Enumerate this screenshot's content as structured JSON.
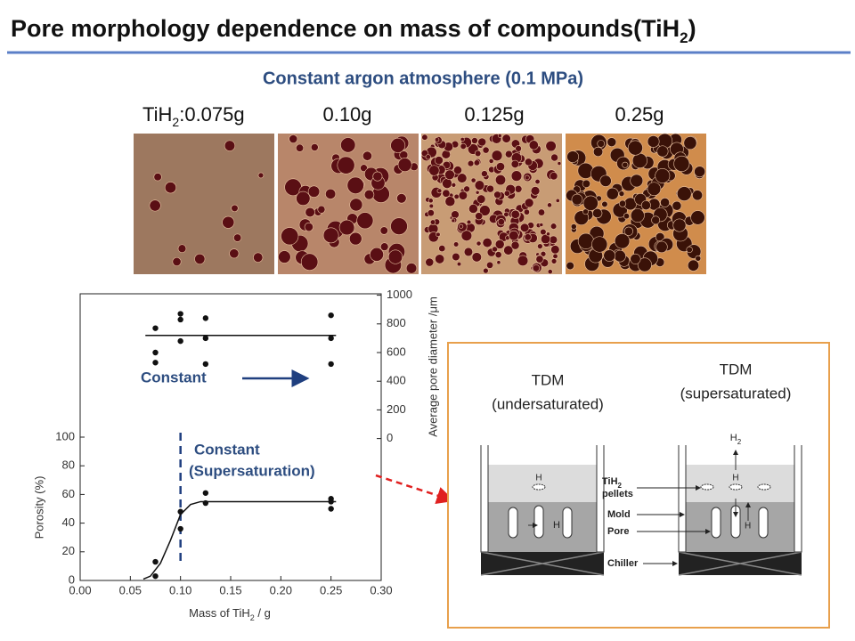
{
  "title": {
    "main": "Pore morphology dependence on mass of compounds(TiH",
    "sub": "2",
    "end": ")"
  },
  "subtitle": "Constant argon atmosphere (0.1 MPa)",
  "sample_prefix": {
    "text": "TiH",
    "sub": "2",
    "sep": ":"
  },
  "sample_labels": [
    "0.075g",
    "0.10g",
    "0.125g",
    "0.25g"
  ],
  "chart_data": {
    "type": "scatter",
    "xlabel": {
      "text": "Mass of TiH",
      "sub": "2",
      "end": " / g"
    },
    "ylabel": "Porosity (%)",
    "y2label": "Average pore diameter /μm",
    "xlim": [
      0,
      0.3
    ],
    "xticks": [
      {
        "value": 0,
        "label": "0.00"
      },
      {
        "value": 0.05,
        "label": "0.05"
      },
      {
        "value": 0.1,
        "label": "0.10"
      },
      {
        "value": 0.15,
        "label": "0.15"
      },
      {
        "value": 0.2,
        "label": "0.20"
      },
      {
        "value": 0.25,
        "label": "0.25"
      },
      {
        "value": 0.3,
        "label": "0.30"
      }
    ],
    "ylim": [
      0,
      200
    ],
    "yticks": [
      0,
      20,
      40,
      60,
      80,
      100
    ],
    "y2lim": [
      -990,
      1010
    ],
    "y2ticks": [
      0,
      200,
      400,
      600,
      800,
      1000
    ],
    "vline": {
      "x": 0.1,
      "color": "#1f3f7f"
    },
    "series": [
      {
        "kind": "points",
        "color": "#111",
        "x": [
          0.075,
          0.075,
          0.1,
          0.1,
          0.125,
          0.125,
          0.25,
          0.25,
          0.25
        ],
        "values": [
          3,
          13,
          36,
          48,
          54,
          61,
          50,
          55,
          57
        ]
      },
      {
        "kind": "points",
        "axis": "y2",
        "color": "#111",
        "x": [
          0.075,
          0.075,
          0.075,
          0.1,
          0.1,
          0.1,
          0.125,
          0.125,
          0.125,
          0.25,
          0.25,
          0.25
        ],
        "values": [
          770,
          600,
          530,
          870,
          830,
          680,
          840,
          700,
          520,
          860,
          700,
          520
        ]
      },
      {
        "kind": "line",
        "color": "#111",
        "x": [
          0.063,
          0.07,
          0.08,
          0.09,
          0.1,
          0.11,
          0.12,
          0.15,
          0.2,
          0.255
        ],
        "values": [
          1,
          3,
          12,
          28,
          46,
          53,
          55,
          55,
          55,
          55
        ]
      },
      {
        "kind": "line",
        "axis": "y2",
        "color": "#111",
        "x": [
          0.065,
          0.255
        ],
        "values": [
          720,
          720
        ]
      }
    ],
    "annotations": [
      "Constant",
      "Constant",
      "(Supersaturation)"
    ]
  },
  "diagram": {
    "left": [
      "TDM",
      "(undersaturated)"
    ],
    "right": [
      "TDM",
      "(supersaturated)"
    ],
    "labels": [
      {
        "text": "TiH",
        "sub": "2"
      },
      "pellets",
      "Mold",
      "Pore",
      "Chiller"
    ],
    "species": [
      "H",
      "H",
      "H",
      "H",
      {
        "text": "H",
        "sub": "2"
      }
    ]
  }
}
